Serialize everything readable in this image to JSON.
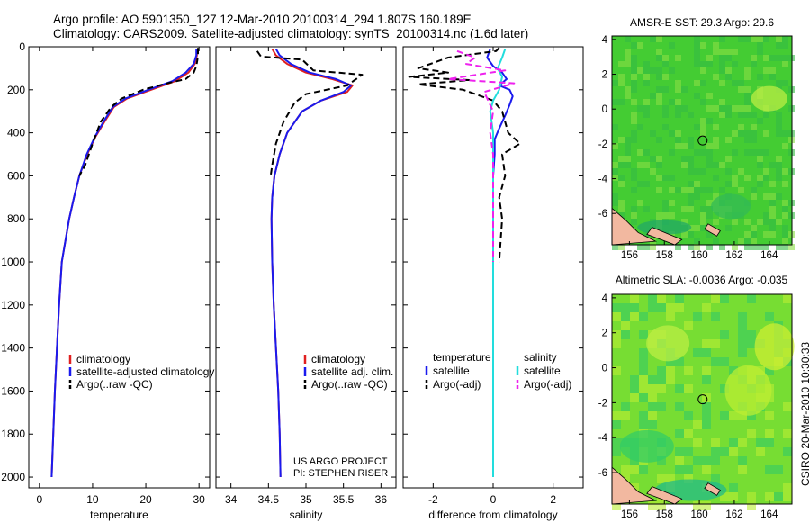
{
  "header": {
    "line1": "Argo profile: AO 5901350_127 12-Mar-2010 20100314_294 1.807S 160.189E",
    "line2": "Climatology: CARS2009. Satellite-adjusted climatology: synTS_20100314.nc (1.6d later)"
  },
  "credit": "CSIRO 20-Mar-2010 10:30:33",
  "colors": {
    "climatology": "#e02020",
    "satellite": "#1a1aee",
    "argo": "#000000",
    "salinity_satellite": "#22dddd",
    "salinity_argo": "#ee22ee"
  },
  "chart_data": [
    {
      "type": "line",
      "xlabel": "temperature",
      "ylabel": "",
      "xlim": [
        -2,
        32
      ],
      "ylim": [
        2050,
        0
      ],
      "xticks": [
        0,
        10,
        20,
        30
      ],
      "xtick_labels": [
        "0",
        "10",
        "20",
        "30"
      ],
      "yticks": [
        0,
        200,
        400,
        600,
        800,
        1000,
        1200,
        1400,
        1600,
        1800,
        2000
      ],
      "ytick_labels": [
        "0",
        "200",
        "400",
        "600",
        "800",
        "1000",
        "1200",
        "1400",
        "1600",
        "1800",
        "2000"
      ],
      "legend": [
        "climatology",
        "satellite-adjusted climatology",
        "Argo(..raw -QC)"
      ],
      "series": [
        {
          "name": "climatology",
          "style": "solid",
          "color": "climatology",
          "x": [
            29.6,
            29.6,
            29.2,
            28.0,
            25.5,
            21.0,
            16.5,
            14.0,
            12.2,
            10.5,
            9.0,
            7.5,
            6.5,
            5.6,
            4.9,
            4.2,
            3.7,
            3.3,
            2.9,
            2.6,
            2.3
          ],
          "y": [
            10,
            40,
            80,
            120,
            160,
            200,
            240,
            280,
            350,
            420,
            500,
            600,
            700,
            800,
            900,
            1000,
            1200,
            1400,
            1600,
            1800,
            2000
          ]
        },
        {
          "name": "satellite-adjusted climatology",
          "style": "solid",
          "color": "satellite",
          "x": [
            29.5,
            29.5,
            29.0,
            27.5,
            25.0,
            20.5,
            16.2,
            13.8,
            12.0,
            10.4,
            8.9,
            7.5,
            6.5,
            5.6,
            4.9,
            4.2,
            3.7,
            3.3,
            2.9,
            2.6,
            2.3
          ],
          "y": [
            10,
            40,
            80,
            120,
            160,
            200,
            240,
            280,
            350,
            420,
            500,
            600,
            700,
            800,
            900,
            1000,
            1200,
            1400,
            1600,
            1800,
            2000
          ]
        },
        {
          "name": "Argo(..raw -QC)",
          "style": "dashed",
          "color": "argo",
          "x": [
            29.8,
            29.8,
            29.7,
            29.5,
            29.0,
            27.5,
            24.0,
            19.5,
            15.5,
            13.5,
            11.5,
            10.0,
            8.6,
            7.5
          ],
          "y": [
            5,
            30,
            60,
            90,
            120,
            150,
            170,
            200,
            240,
            280,
            350,
            450,
            550,
            600
          ]
        }
      ]
    },
    {
      "type": "line",
      "xlabel": "salinity",
      "ylabel": "",
      "xlim": [
        33.8,
        36.2
      ],
      "ylim": [
        2050,
        0
      ],
      "xticks": [
        34,
        34.5,
        35,
        35.5,
        36
      ],
      "xtick_labels": [
        "34",
        "34.5",
        "35",
        "35.5",
        "36"
      ],
      "legend": [
        "climatology",
        "satellite adj. clim.",
        "Argo(..raw -QC)"
      ],
      "annotation": [
        "US ARGO PROJECT",
        "PI: STEPHEN RISER"
      ],
      "series": [
        {
          "name": "climatology",
          "style": "solid",
          "color": "climatology",
          "x": [
            34.55,
            34.6,
            34.75,
            35.0,
            35.35,
            35.62,
            35.55,
            35.2,
            34.95,
            34.75,
            34.65,
            34.58,
            34.55,
            34.54,
            34.55,
            34.57,
            34.6,
            34.63,
            34.65,
            34.66
          ],
          "y": [
            10,
            40,
            80,
            120,
            150,
            180,
            210,
            250,
            300,
            400,
            500,
            600,
            700,
            800,
            1000,
            1200,
            1400,
            1600,
            1800,
            2000
          ]
        },
        {
          "name": "satellite adj. clim.",
          "style": "solid",
          "color": "satellite",
          "x": [
            34.6,
            34.65,
            34.8,
            35.05,
            35.4,
            35.6,
            35.5,
            35.2,
            34.95,
            34.75,
            34.65,
            34.58,
            34.55,
            34.54,
            34.55,
            34.57,
            34.6,
            34.63,
            34.65,
            34.66
          ],
          "y": [
            10,
            40,
            80,
            120,
            150,
            180,
            210,
            250,
            300,
            400,
            500,
            600,
            700,
            800,
            1000,
            1200,
            1400,
            1600,
            1800,
            2000
          ]
        },
        {
          "name": "Argo(..raw -QC)",
          "style": "dashed",
          "color": "argo",
          "x": [
            34.35,
            34.4,
            34.95,
            35.1,
            35.75,
            35.55,
            35.0,
            34.85,
            34.7,
            34.6,
            34.55,
            34.53
          ],
          "y": [
            20,
            45,
            60,
            110,
            130,
            180,
            220,
            260,
            350,
            450,
            550,
            600
          ]
        }
      ]
    },
    {
      "type": "line",
      "xlabel": "difference from climatology",
      "ylabel": "",
      "xlim": [
        -3,
        3
      ],
      "ylim": [
        2050,
        0
      ],
      "xticks": [
        -2,
        0,
        2
      ],
      "xtick_labels": [
        "-2",
        "0",
        "2"
      ],
      "legend": [
        "temperature",
        "satellite",
        "Argo(-adj)",
        "salinity",
        "satellite",
        "Argo(-adj)"
      ],
      "series": [
        {
          "name": "satellite",
          "group": "temperature",
          "style": "solid",
          "color": "satellite",
          "x": [
            -0.1,
            -0.2,
            0.0,
            0.3,
            0.45,
            0.2,
            0.55,
            0.65,
            0.55,
            0.4,
            0.2,
            0.05,
            0.05,
            0.0,
            0.0,
            0.0,
            0.0,
            0.0,
            0.0
          ],
          "y": [
            10,
            50,
            90,
            120,
            150,
            180,
            200,
            230,
            270,
            320,
            380,
            430,
            500,
            600,
            800,
            1000,
            1200,
            1600,
            2000
          ]
        },
        {
          "name": "Argo(-adj)",
          "group": "temperature",
          "style": "dashed",
          "color": "argo",
          "x": [
            0.2,
            0.1,
            -1.5,
            -2.5,
            -1.5,
            -2.8,
            -0.8,
            -2.5,
            -1.0,
            0.0,
            0.3,
            0.5,
            0.9,
            0.3,
            0.4,
            0.2,
            0.3,
            0.2
          ],
          "y": [
            5,
            20,
            50,
            100,
            120,
            140,
            155,
            175,
            200,
            250,
            300,
            400,
            450,
            500,
            600,
            700,
            800,
            1000
          ]
        },
        {
          "name": "satellite",
          "group": "salinity",
          "style": "solid",
          "color": "salinity_satellite",
          "x": [
            0.4,
            0.3,
            0.15,
            0.3,
            0.2,
            0.0,
            -0.1,
            0.0,
            0.0,
            0.0,
            0.0,
            0.0
          ],
          "y": [
            10,
            50,
            100,
            140,
            200,
            250,
            300,
            400,
            600,
            1000,
            1500,
            2000
          ]
        },
        {
          "name": "Argo(-adj)",
          "group": "salinity",
          "style": "dashed",
          "color": "salinity_argo",
          "x": [
            -1.2,
            -0.6,
            -0.9,
            0.4,
            -1.5,
            0.7,
            -0.3,
            0.0,
            -0.1,
            0.0,
            0.0,
            0.0
          ],
          "y": [
            20,
            50,
            80,
            110,
            150,
            170,
            210,
            300,
            400,
            500,
            800,
            1000
          ]
        }
      ]
    },
    {
      "type": "heatmap",
      "title": "AMSR-E SST: 29.3 Argo: 29.6",
      "xlim": [
        155,
        165.3
      ],
      "ylim": [
        -7.8,
        4.2
      ],
      "xticks": [
        156,
        158,
        160,
        162,
        164
      ],
      "xtick_labels": [
        "156",
        "158",
        "160",
        "162",
        "164"
      ],
      "yticks": [
        4,
        2,
        0,
        -2,
        -4,
        -6
      ],
      "ytick_labels": [
        "4",
        "2",
        "0",
        "-2",
        "-4",
        "-6"
      ],
      "marker": {
        "lon": 160.189,
        "lat": -1.807
      },
      "colors": {
        "base": "#44cc33",
        "patch_light": "#88dd44",
        "patch_dark": "#33bb44",
        "land": "#f2b8a0"
      }
    },
    {
      "type": "heatmap",
      "title": "Altimetric SLA: -0.0036 Argo: -0.035",
      "xlim": [
        155,
        165.3
      ],
      "ylim": [
        -7.8,
        4.2
      ],
      "xticks": [
        156,
        158,
        160,
        162,
        164
      ],
      "xtick_labels": [
        "156",
        "158",
        "160",
        "162",
        "164"
      ],
      "yticks": [
        4,
        2,
        0,
        -2,
        -4,
        -6
      ],
      "ytick_labels": [
        "4",
        "2",
        "0",
        "-2",
        "-4",
        "-6"
      ],
      "marker": {
        "lon": 160.189,
        "lat": -1.807
      },
      "colors": {
        "base": "#77dd33",
        "patch_light": "#bbee33",
        "patch_dark": "#33cc66",
        "land": "#f2b8a0"
      }
    }
  ]
}
